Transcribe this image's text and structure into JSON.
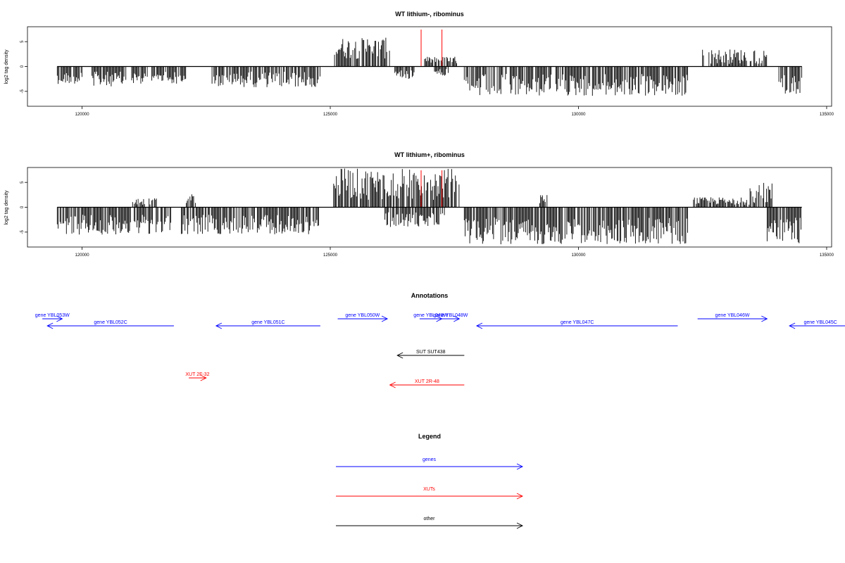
{
  "chart_data": [
    {
      "type": "bar",
      "title": "WT lithium-, ribominus",
      "ylabel": "log2 tag density",
      "xlim": [
        118900,
        135100
      ],
      "ylim": [
        -8,
        8
      ],
      "xticks": [
        120000,
        125000,
        130000,
        135000
      ],
      "xtick_labels": [
        "120000",
        "125000",
        "130000",
        "135000"
      ],
      "yticks": [
        5,
        0,
        -5
      ],
      "ytick_labels": [
        "5",
        "0",
        "-5"
      ],
      "baseline": [
        119500,
        134500
      ],
      "markers": [
        {
          "x": 126830,
          "color": "#ff0000"
        },
        {
          "x": 127250,
          "color": "#ff0000"
        }
      ],
      "segments": [
        {
          "x0": 119500,
          "x1": 120000,
          "min": -3.5,
          "max": -1
        },
        {
          "x0": 120200,
          "x1": 120900,
          "min": -4,
          "max": -1
        },
        {
          "x0": 121000,
          "x1": 122100,
          "min": -3.5,
          "max": -1
        },
        {
          "x0": 122600,
          "x1": 124800,
          "min": -4.2,
          "max": -1
        },
        {
          "x0": 125050,
          "x1": 126200,
          "min": 1.5,
          "max": 5.8
        },
        {
          "x0": 126300,
          "x1": 126700,
          "min": -2.5,
          "max": -0.5
        },
        {
          "x0": 126900,
          "x1": 127600,
          "min": 0.5,
          "max": 2
        },
        {
          "x0": 127100,
          "x1": 127400,
          "min": -2,
          "max": -0.5
        },
        {
          "x0": 127700,
          "x1": 132200,
          "min": -6,
          "max": -1.5
        },
        {
          "x0": 132500,
          "x1": 133800,
          "min": 0.5,
          "max": 3.5
        },
        {
          "x0": 134000,
          "x1": 134500,
          "min": -5.5,
          "max": -1.5
        }
      ]
    },
    {
      "type": "bar",
      "title": "WT lithium+, ribominus",
      "ylabel": "log2 tag density",
      "xlim": [
        118900,
        135100
      ],
      "ylim": [
        -8,
        8
      ],
      "xticks": [
        120000,
        125000,
        130000,
        135000
      ],
      "xtick_labels": [
        "120000",
        "125000",
        "130000",
        "135000"
      ],
      "yticks": [
        5,
        0,
        -5
      ],
      "ytick_labels": [
        "5",
        "0",
        "-5"
      ],
      "baseline": [
        119500,
        134500
      ],
      "markers": [
        {
          "x": 126830,
          "color": "#ff0000"
        },
        {
          "x": 127250,
          "color": "#ff0000"
        }
      ],
      "segments": [
        {
          "x0": 119500,
          "x1": 121800,
          "min": -5.5,
          "max": -1.5
        },
        {
          "x0": 121000,
          "x1": 121500,
          "min": 0.5,
          "max": 1.8
        },
        {
          "x0": 122100,
          "x1": 122300,
          "min": 0.5,
          "max": 3
        },
        {
          "x0": 122000,
          "x1": 124800,
          "min": -5.5,
          "max": -1.5
        },
        {
          "x0": 125050,
          "x1": 127600,
          "min": 1.5,
          "max": 7.8
        },
        {
          "x0": 126100,
          "x1": 127300,
          "min": -4,
          "max": -1
        },
        {
          "x0": 127700,
          "x1": 132200,
          "min": -7.5,
          "max": -2
        },
        {
          "x0": 129200,
          "x1": 129400,
          "min": 0.5,
          "max": 2.5
        },
        {
          "x0": 132300,
          "x1": 133400,
          "min": 0.5,
          "max": 2
        },
        {
          "x0": 133400,
          "x1": 133900,
          "min": 0.5,
          "max": 5
        },
        {
          "x0": 133800,
          "x1": 134500,
          "min": -7.5,
          "max": -2
        }
      ]
    }
  ],
  "annotations": {
    "title": "Annotations",
    "items": [
      {
        "label": "gene YBL053W",
        "start": 119200,
        "end": 119600,
        "strand": "+",
        "row": 0,
        "color": "#0000ff"
      },
      {
        "label": "gene YBL052C",
        "start": 119300,
        "end": 121850,
        "strand": "-",
        "row": 1,
        "color": "#0000ff"
      },
      {
        "label": "gene YBL051C",
        "start": 122700,
        "end": 124800,
        "strand": "-",
        "row": 1,
        "color": "#0000ff"
      },
      {
        "label": "gene YBL050W",
        "start": 125150,
        "end": 126150,
        "strand": "+",
        "row": 0,
        "color": "#0000ff"
      },
      {
        "label": "gene YBL049W",
        "start": 126800,
        "end": 127250,
        "strand": "+",
        "row": 0,
        "color": "#0000ff"
      },
      {
        "label": "gene YBL048W",
        "start": 127250,
        "end": 127600,
        "strand": "+",
        "row": 0,
        "color": "#0000ff"
      },
      {
        "label": "gene YBL047C",
        "start": 127950,
        "end": 132000,
        "strand": "-",
        "row": 1,
        "color": "#0000ff"
      },
      {
        "label": "gene YBL046W",
        "start": 132400,
        "end": 133800,
        "strand": "+",
        "row": 0,
        "color": "#0000ff"
      },
      {
        "label": "gene YBL045C",
        "start": 134250,
        "end": 135500,
        "strand": "-",
        "row": 1,
        "color": "#0000ff"
      },
      {
        "label": "SUT SUT438",
        "start": 126350,
        "end": 127700,
        "strand": "-",
        "row": 2,
        "color": "#000000"
      },
      {
        "label": "XUT 2F-32",
        "start": 122150,
        "end": 122500,
        "strand": "+",
        "row": 3,
        "color": "#ff0000"
      },
      {
        "label": "XUT 2R-48",
        "start": 126200,
        "end": 127700,
        "strand": "-",
        "row": 4,
        "color": "#ff0000"
      }
    ]
  },
  "legend": {
    "title": "Legend",
    "items": [
      {
        "label": "genes",
        "color": "#0000ff"
      },
      {
        "label": "XUTs",
        "color": "#ff0000"
      },
      {
        "label": "other",
        "color": "#000000"
      }
    ]
  }
}
